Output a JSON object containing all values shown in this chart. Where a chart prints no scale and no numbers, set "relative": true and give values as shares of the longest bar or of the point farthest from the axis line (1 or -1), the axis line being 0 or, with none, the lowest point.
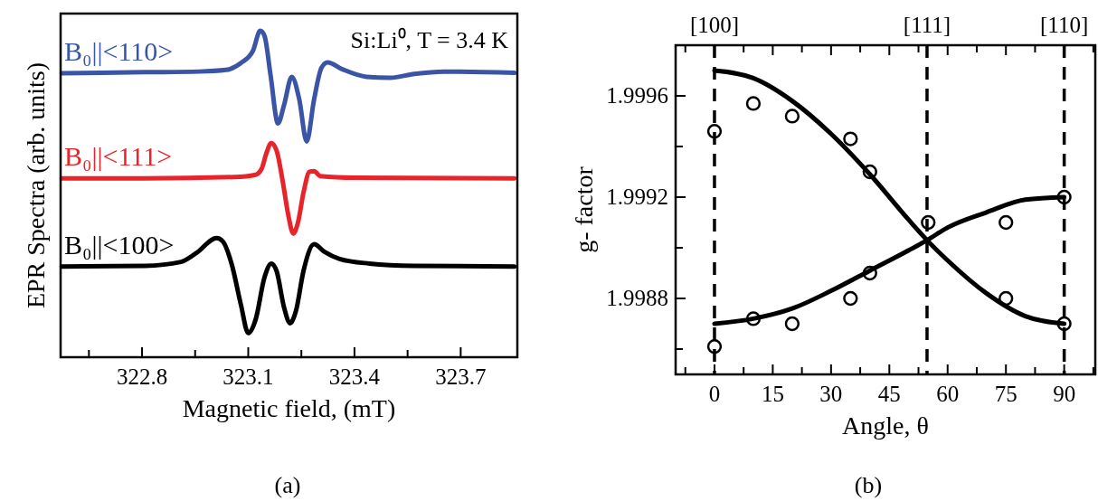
{
  "chart_data": [
    {
      "type": "line",
      "title": "(a)",
      "xlabel": "Magnetic field, (mT)",
      "ylabel": "EPR Spectra (arb. units)",
      "relative": true,
      "legend": false,
      "grid": false,
      "xlim": [
        322.57,
        323.86
      ],
      "xticks": [
        {
          "value": 322.65,
          "label": null
        },
        322.8,
        {
          "value": 322.95,
          "label": null
        },
        323.1,
        {
          "value": 323.25,
          "label": null
        },
        323.4,
        {
          "value": 323.55,
          "label": null
        },
        323.7
      ],
      "annotations": [
        "Si:Li⁰, T = 3.4 K"
      ],
      "series": [
        {
          "name": "B₀||<110>",
          "color": "#3a55a5",
          "x": [
            322.573,
            322.808,
            322.961,
            323.037,
            323.079,
            323.113,
            323.134,
            323.146,
            323.163,
            323.184,
            323.201,
            323.223,
            323.244,
            323.265,
            323.286,
            323.307,
            323.324,
            323.366,
            323.434,
            323.501,
            323.569,
            323.653,
            323.852
          ],
          "values": [
            0.87,
            0.873,
            0.875,
            0.88,
            0.901,
            0.938,
            1.0,
            0.984,
            0.864,
            0.716,
            0.772,
            0.859,
            0.79,
            0.661,
            0.79,
            0.887,
            0.903,
            0.882,
            0.859,
            0.856,
            0.868,
            0.875,
            0.871
          ]
        },
        {
          "name": "B₀||<111>",
          "color": "#e8242a",
          "x": [
            322.573,
            322.808,
            323.062,
            323.121,
            323.138,
            323.151,
            323.165,
            323.18,
            323.197,
            323.214,
            323.227,
            323.24,
            323.256,
            323.273,
            323.286,
            323.303,
            323.4,
            323.852
          ],
          "values": [
            0.548,
            0.548,
            0.552,
            0.559,
            0.578,
            0.624,
            0.656,
            0.633,
            0.541,
            0.43,
            0.379,
            0.411,
            0.504,
            0.568,
            0.57,
            0.555,
            0.55,
            0.548
          ]
        },
        {
          "name": "B₀||<100>",
          "color": "#000000",
          "x": [
            322.573,
            322.808,
            322.91,
            322.952,
            323.011,
            323.028,
            323.054,
            323.079,
            323.1,
            323.121,
            323.146,
            323.165,
            323.18,
            323.201,
            323.218,
            323.235,
            323.256,
            323.286,
            323.315,
            323.358,
            323.442,
            323.569,
            323.852
          ],
          "values": [
            0.278,
            0.28,
            0.292,
            0.318,
            0.365,
            0.355,
            0.282,
            0.162,
            0.074,
            0.116,
            0.245,
            0.287,
            0.264,
            0.153,
            0.104,
            0.143,
            0.264,
            0.346,
            0.323,
            0.301,
            0.287,
            0.28,
            0.278
          ]
        }
      ]
    },
    {
      "type": "scatter",
      "title": "(b)",
      "xlabel": "Angle, θ",
      "ylabel": "g- factor",
      "legend": false,
      "grid": false,
      "marker": "circle",
      "xlim": [
        -10,
        98
      ],
      "xticks": [
        {
          "value": -7.5,
          "label": null
        },
        0,
        {
          "value": 7.5,
          "label": null
        },
        15,
        {
          "value": 22.5,
          "label": null
        },
        30,
        {
          "value": 37.5,
          "label": null
        },
        45,
        {
          "value": 52.5,
          "label": null
        },
        60,
        {
          "value": 67.5,
          "label": null
        },
        75,
        {
          "value": 82.5,
          "label": null
        },
        90,
        {
          "value": 97.5,
          "label": null
        }
      ],
      "ylim": [
        1.9985,
        1.9998
      ],
      "yticks": [
        {
          "value": 1.9986,
          "label": null
        },
        1.9988,
        {
          "value": 1.999,
          "label": null
        },
        1.9992,
        {
          "value": 1.9994,
          "label": null
        },
        1.9996
      ],
      "ref_lines": [
        {
          "axis": "x",
          "value": 0,
          "line_style": "dashed",
          "color": "#000000"
        },
        {
          "axis": "x",
          "value": 54.7,
          "line_style": "dashed",
          "color": "#000000"
        },
        {
          "axis": "x",
          "value": 90,
          "line_style": "dashed",
          "color": "#000000"
        }
      ],
      "annotations": [
        "[100]",
        "[111]",
        "[110]"
      ],
      "series": [
        {
          "color": "#000000",
          "x": [
            0,
            10,
            20,
            35,
            40,
            55,
            75,
            90
          ],
          "values": [
            1.99946,
            1.99957,
            1.99952,
            1.99943,
            1.9993,
            1.9991,
            1.9988,
            1.9987
          ]
        },
        {
          "color": "#000000",
          "x": [
            0,
            10,
            20,
            35,
            40,
            75,
            90
          ],
          "values": [
            1.99861,
            1.99872,
            1.9987,
            1.9988,
            1.9989,
            1.9991,
            1.9992
          ]
        },
        {
          "type": "line",
          "marker": "none",
          "color": "#000000",
          "x": [
            0,
            10,
            20,
            30,
            40,
            50,
            54.7,
            60,
            70,
            80,
            90
          ],
          "values": [
            1.9997,
            1.99967,
            1.99958,
            1.99945,
            1.99929,
            1.99911,
            1.99903,
            1.99895,
            1.99882,
            1.99873,
            1.9987
          ]
        },
        {
          "type": "line",
          "marker": "none",
          "color": "#000000",
          "x": [
            0,
            10,
            20,
            30,
            40,
            50,
            54.7,
            60,
            70,
            80,
            90
          ],
          "values": [
            1.9987,
            1.99872,
            1.99876,
            1.99883,
            1.99891,
            1.99899,
            1.99903,
            1.99908,
            1.99914,
            1.99919,
            1.9992
          ]
        }
      ]
    }
  ]
}
